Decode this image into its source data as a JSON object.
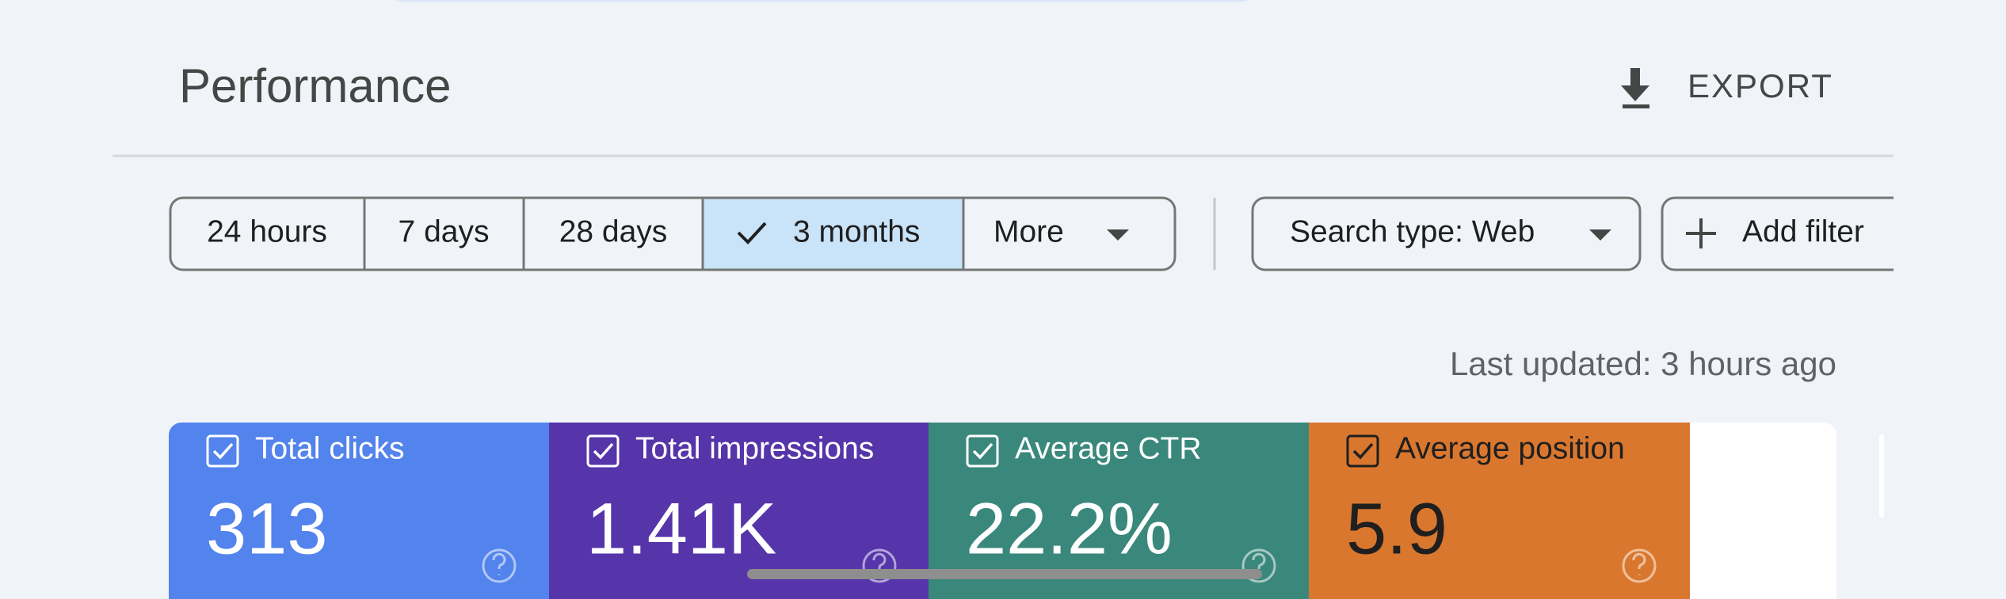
{
  "header": {
    "title": "Performance",
    "export": "EXPORT"
  },
  "filters": {
    "date_ranges": [
      "24 hours",
      "7 days",
      "28 days",
      "3 months"
    ],
    "more": "More",
    "search_type": "Search type: Web",
    "add_filter": "Add filter"
  },
  "last_updated": "Last updated: 3 hours ago",
  "metrics": [
    {
      "label": "Total clicks",
      "value": "313"
    },
    {
      "label": "Total impressions",
      "value": "1.41K"
    },
    {
      "label": "Average CTR",
      "value": "22.2%"
    },
    {
      "label": "Average position",
      "value": "5.9"
    }
  ]
}
